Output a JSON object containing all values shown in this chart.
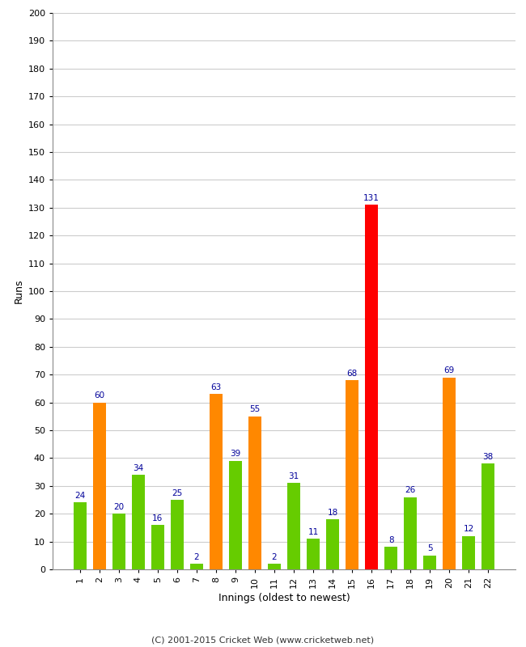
{
  "innings": [
    1,
    2,
    3,
    4,
    5,
    6,
    7,
    8,
    9,
    10,
    11,
    12,
    13,
    14,
    15,
    16,
    17,
    18,
    19,
    20,
    21,
    22
  ],
  "values": [
    24,
    60,
    20,
    34,
    16,
    25,
    2,
    63,
    39,
    55,
    2,
    31,
    11,
    18,
    68,
    131,
    8,
    26,
    5,
    69,
    12,
    38
  ],
  "colors": [
    "#66cc00",
    "#ff8800",
    "#66cc00",
    "#66cc00",
    "#66cc00",
    "#66cc00",
    "#66cc00",
    "#ff8800",
    "#66cc00",
    "#ff8800",
    "#66cc00",
    "#66cc00",
    "#66cc00",
    "#66cc00",
    "#ff8800",
    "#ff0000",
    "#66cc00",
    "#66cc00",
    "#66cc00",
    "#ff8800",
    "#66cc00",
    "#66cc00"
  ],
  "ylabel": "Runs",
  "xlabel": "Innings (oldest to newest)",
  "ylim": [
    0,
    200
  ],
  "yticks": [
    0,
    10,
    20,
    30,
    40,
    50,
    60,
    70,
    80,
    90,
    100,
    110,
    120,
    130,
    140,
    150,
    160,
    170,
    180,
    190,
    200
  ],
  "label_color": "#000099",
  "bg_color": "#ffffff",
  "grid_color": "#cccccc",
  "footer": "(C) 2001-2015 Cricket Web (www.cricketweb.net)",
  "bar_width": 0.65
}
